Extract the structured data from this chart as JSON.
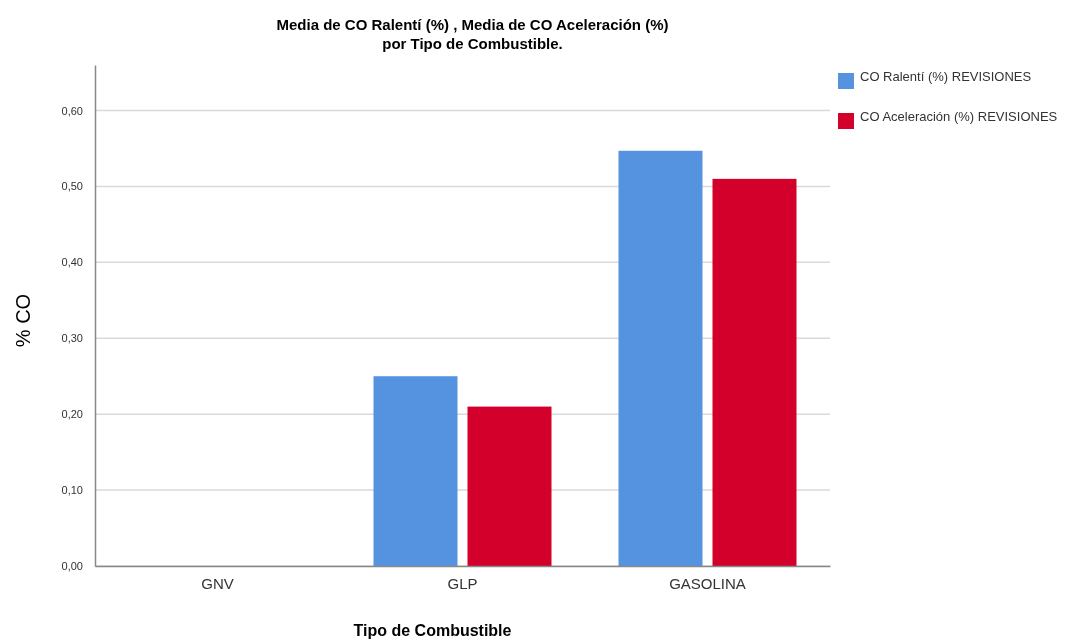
{
  "chart_data": {
    "type": "bar",
    "title": "Media de CO Ralentí (%)   , Media de CO Aceleración (%)\npor Tipo de Combustible.",
    "xlabel": "Tipo de Combustible",
    "ylabel": "% CO",
    "categories": [
      "GNV",
      "GLP",
      "GASOLINA"
    ],
    "series": [
      {
        "name": "CO Ralentí (%) REVISIONES",
        "color": "#5593e0",
        "values": [
          0,
          0.25,
          0.547
        ]
      },
      {
        "name": "CO Aceleración (%) REVISIONES",
        "color": "#d4002c",
        "values": [
          0,
          0.21,
          0.51
        ]
      }
    ],
    "ylim": [
      0,
      0.66
    ],
    "yticks": [
      {
        "value": 0,
        "label": "0,00"
      },
      {
        "value": 0.1,
        "label": "0,10"
      },
      {
        "value": 0.2,
        "label": "0,20"
      },
      {
        "value": 0.3,
        "label": "0,30"
      },
      {
        "value": 0.4,
        "label": "0,40"
      },
      {
        "value": 0.5,
        "label": "0,50"
      },
      {
        "value": 0.6,
        "label": "0,60"
      }
    ],
    "grid": "y",
    "legend": "top right"
  }
}
